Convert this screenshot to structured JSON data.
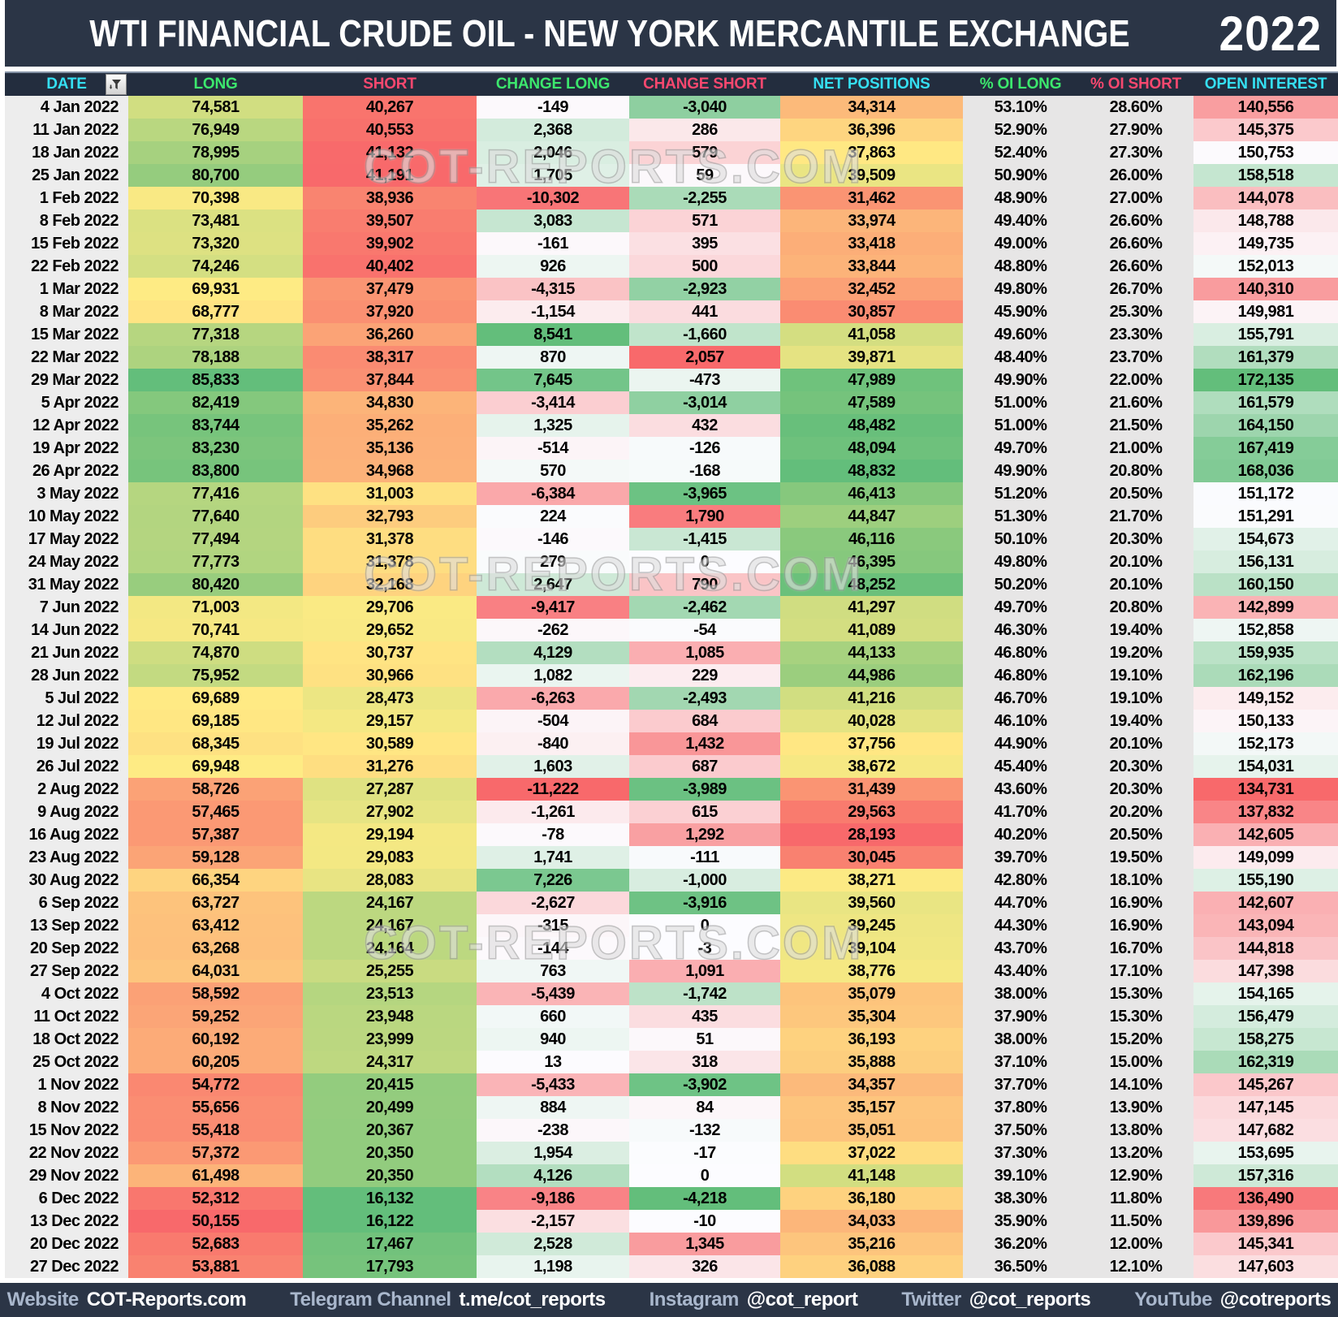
{
  "header": {
    "title": "WTI FINANCIAL CRUDE OIL - NEW YORK MERCANTILE EXCHANGE",
    "year": "2022"
  },
  "watermark_text": "COT-REPORTS.COM",
  "table": {
    "header_colors": [
      "cyan",
      "green",
      "pink",
      "green",
      "pink",
      "cyan",
      "green",
      "pink",
      "cyan"
    ]
  },
  "chart_data": {
    "type": "table",
    "title": "WTI FINANCIAL CRUDE OIL - NEW YORK MERCANTILE EXCHANGE 2022",
    "columns": [
      "DATE",
      "LONG",
      "SHORT",
      "CHANGE LONG",
      "CHANGE SHORT",
      "NET POSITIONS",
      "% OI LONG",
      "% OI SHORT",
      "OPEN INTEREST"
    ],
    "rows": [
      [
        "4 Jan 2022",
        74581,
        40267,
        -149,
        -3040,
        34314,
        53.1,
        28.6,
        140556
      ],
      [
        "11 Jan 2022",
        76949,
        40553,
        2368,
        286,
        36396,
        52.9,
        27.9,
        145375
      ],
      [
        "18 Jan 2022",
        78995,
        41132,
        2046,
        579,
        37863,
        52.4,
        27.3,
        150753
      ],
      [
        "25 Jan 2022",
        80700,
        41191,
        1705,
        59,
        39509,
        50.9,
        26.0,
        158518
      ],
      [
        "1 Feb 2022",
        70398,
        38936,
        -10302,
        -2255,
        31462,
        48.9,
        27.0,
        144078
      ],
      [
        "8 Feb 2022",
        73481,
        39507,
        3083,
        571,
        33974,
        49.4,
        26.6,
        148788
      ],
      [
        "15 Feb 2022",
        73320,
        39902,
        -161,
        395,
        33418,
        49.0,
        26.6,
        149735
      ],
      [
        "22 Feb 2022",
        74246,
        40402,
        926,
        500,
        33844,
        48.8,
        26.6,
        152013
      ],
      [
        "1 Mar 2022",
        69931,
        37479,
        -4315,
        -2923,
        32452,
        49.8,
        26.7,
        140310
      ],
      [
        "8 Mar 2022",
        68777,
        37920,
        -1154,
        441,
        30857,
        45.9,
        25.3,
        149981
      ],
      [
        "15 Mar 2022",
        77318,
        36260,
        8541,
        -1660,
        41058,
        49.6,
        23.3,
        155791
      ],
      [
        "22 Mar 2022",
        78188,
        38317,
        870,
        2057,
        39871,
        48.4,
        23.7,
        161379
      ],
      [
        "29 Mar 2022",
        85833,
        37844,
        7645,
        -473,
        47989,
        49.9,
        22.0,
        172135
      ],
      [
        "5 Apr 2022",
        82419,
        34830,
        -3414,
        -3014,
        47589,
        51.0,
        21.6,
        161579
      ],
      [
        "12 Apr 2022",
        83744,
        35262,
        1325,
        432,
        48482,
        51.0,
        21.5,
        164150
      ],
      [
        "19 Apr 2022",
        83230,
        35136,
        -514,
        -126,
        48094,
        49.7,
        21.0,
        167419
      ],
      [
        "26 Apr 2022",
        83800,
        34968,
        570,
        -168,
        48832,
        49.9,
        20.8,
        168036
      ],
      [
        "3 May 2022",
        77416,
        31003,
        -6384,
        -3965,
        46413,
        51.2,
        20.5,
        151172
      ],
      [
        "10 May 2022",
        77640,
        32793,
        224,
        1790,
        44847,
        51.3,
        21.7,
        151291
      ],
      [
        "17 May 2022",
        77494,
        31378,
        -146,
        -1415,
        46116,
        50.1,
        20.3,
        154673
      ],
      [
        "24 May 2022",
        77773,
        31378,
        279,
        0,
        46395,
        49.8,
        20.1,
        156131
      ],
      [
        "31 May 2022",
        80420,
        32168,
        2647,
        790,
        48252,
        50.2,
        20.1,
        160150
      ],
      [
        "7 Jun 2022",
        71003,
        29706,
        -9417,
        -2462,
        41297,
        49.7,
        20.8,
        142899
      ],
      [
        "14 Jun 2022",
        70741,
        29652,
        -262,
        -54,
        41089,
        46.3,
        19.4,
        152858
      ],
      [
        "21 Jun 2022",
        74870,
        30737,
        4129,
        1085,
        44133,
        46.8,
        19.2,
        159935
      ],
      [
        "28 Jun 2022",
        75952,
        30966,
        1082,
        229,
        44986,
        46.8,
        19.1,
        162196
      ],
      [
        "5 Jul 2022",
        69689,
        28473,
        -6263,
        -2493,
        41216,
        46.7,
        19.1,
        149152
      ],
      [
        "12 Jul 2022",
        69185,
        29157,
        -504,
        684,
        40028,
        46.1,
        19.4,
        150133
      ],
      [
        "19 Jul 2022",
        68345,
        30589,
        -840,
        1432,
        37756,
        44.9,
        20.1,
        152173
      ],
      [
        "26 Jul 2022",
        69948,
        31276,
        1603,
        687,
        38672,
        45.4,
        20.3,
        154031
      ],
      [
        "2 Aug 2022",
        58726,
        27287,
        -11222,
        -3989,
        31439,
        43.6,
        20.3,
        134731
      ],
      [
        "9 Aug 2022",
        57465,
        27902,
        -1261,
        615,
        29563,
        41.7,
        20.2,
        137832
      ],
      [
        "16 Aug 2022",
        57387,
        29194,
        -78,
        1292,
        28193,
        40.2,
        20.5,
        142605
      ],
      [
        "23 Aug 2022",
        59128,
        29083,
        1741,
        -111,
        30045,
        39.7,
        19.5,
        149099
      ],
      [
        "30 Aug 2022",
        66354,
        28083,
        7226,
        -1000,
        38271,
        42.8,
        18.1,
        155190
      ],
      [
        "6 Sep 2022",
        63727,
        24167,
        -2627,
        -3916,
        39560,
        44.7,
        16.9,
        142607
      ],
      [
        "13 Sep 2022",
        63412,
        24167,
        -315,
        0,
        39245,
        44.3,
        16.9,
        143094
      ],
      [
        "20 Sep 2022",
        63268,
        24164,
        -144,
        -3,
        39104,
        43.7,
        16.7,
        144818
      ],
      [
        "27 Sep 2022",
        64031,
        25255,
        763,
        1091,
        38776,
        43.4,
        17.1,
        147398
      ],
      [
        "4 Oct 2022",
        58592,
        23513,
        -5439,
        -1742,
        35079,
        38.0,
        15.3,
        154165
      ],
      [
        "11 Oct 2022",
        59252,
        23948,
        660,
        435,
        35304,
        37.9,
        15.3,
        156479
      ],
      [
        "18 Oct 2022",
        60192,
        23999,
        940,
        51,
        36193,
        38.0,
        15.2,
        158275
      ],
      [
        "25 Oct 2022",
        60205,
        24317,
        13,
        318,
        35888,
        37.1,
        15.0,
        162319
      ],
      [
        "1 Nov 2022",
        54772,
        20415,
        -5433,
        -3902,
        34357,
        37.7,
        14.1,
        145267
      ],
      [
        "8 Nov 2022",
        55656,
        20499,
        884,
        84,
        35157,
        37.8,
        13.9,
        147145
      ],
      [
        "15 Nov 2022",
        55418,
        20367,
        -238,
        -132,
        35051,
        37.5,
        13.8,
        147682
      ],
      [
        "22 Nov 2022",
        57372,
        20350,
        1954,
        -17,
        37022,
        37.3,
        13.2,
        153695
      ],
      [
        "29 Nov 2022",
        61498,
        20350,
        4126,
        0,
        41148,
        39.1,
        12.9,
        157316
      ],
      [
        "6 Dec 2022",
        52312,
        16132,
        -9186,
        -4218,
        36180,
        38.3,
        11.8,
        136490
      ],
      [
        "13 Dec 2022",
        50155,
        16122,
        -2157,
        -10,
        34033,
        35.9,
        11.5,
        139896
      ],
      [
        "20 Dec 2022",
        52683,
        17467,
        2528,
        1345,
        35216,
        36.2,
        12.0,
        145341
      ],
      [
        "27 Dec 2022",
        53881,
        17793,
        1198,
        326,
        36088,
        36.5,
        12.1,
        147603
      ]
    ]
  },
  "footer": {
    "items": [
      {
        "label": "Website",
        "value": "COT-Reports.com"
      },
      {
        "label": "Telegram Channel",
        "value": "t.me/cot_reports"
      },
      {
        "label": "Instagram",
        "value": "@cot_report"
      },
      {
        "label": "Twitter",
        "value": "@cot_reports"
      },
      {
        "label": "YouTube",
        "value": "@cotreports"
      }
    ]
  },
  "palette": {
    "red": "#F8696B",
    "yellow": "#FFEB84",
    "green": "#63BE7B",
    "neutral": "#FCFCFF",
    "title_bg": "#2B3546",
    "header_bg": "#232D3E",
    "label_cyan": "#35DFF2",
    "label_green": "#3CE76D",
    "label_pink": "#F7486F",
    "gray_cell": "#E7E6E6",
    "date_cell": "#EDEDED",
    "footer_label": "#A9B7CC"
  }
}
